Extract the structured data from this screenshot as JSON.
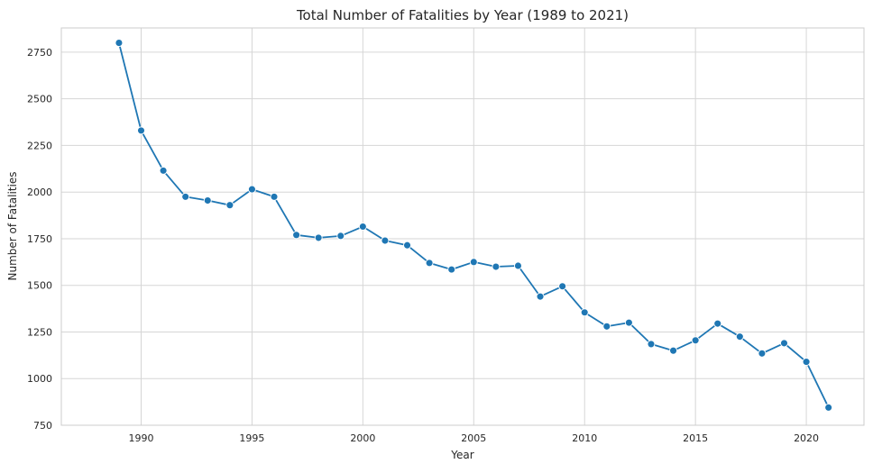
{
  "chart_data": {
    "type": "line",
    "title": "Total Number of Fatalities by Year (1989 to 2021)",
    "xlabel": "Year",
    "ylabel": "Number of Fatalities",
    "xlim": [
      1986.4,
      2022.6
    ],
    "ylim": [
      750,
      2880
    ],
    "xticks": [
      1990,
      1995,
      2000,
      2005,
      2010,
      2015,
      2020
    ],
    "yticks": [
      750,
      1000,
      1250,
      1500,
      1750,
      2000,
      2250,
      2500,
      2750
    ],
    "grid": true,
    "marker": "circle",
    "series": [
      {
        "color": "#1f77b4",
        "x": [
          1989,
          1990,
          1991,
          1992,
          1993,
          1994,
          1995,
          1996,
          1997,
          1998,
          1999,
          2000,
          2001,
          2002,
          2003,
          2004,
          2005,
          2006,
          2007,
          2008,
          2009,
          2010,
          2011,
          2012,
          2013,
          2014,
          2015,
          2016,
          2017,
          2018,
          2019,
          2020,
          2021
        ],
        "y": [
          2800,
          2330,
          2115,
          1975,
          1955,
          1930,
          2015,
          1975,
          1770,
          1755,
          1765,
          1815,
          1740,
          1715,
          1620,
          1585,
          1625,
          1600,
          1605,
          1440,
          1495,
          1355,
          1280,
          1300,
          1185,
          1150,
          1205,
          1295,
          1225,
          1135,
          1190,
          1090,
          845
        ]
      }
    ]
  }
}
